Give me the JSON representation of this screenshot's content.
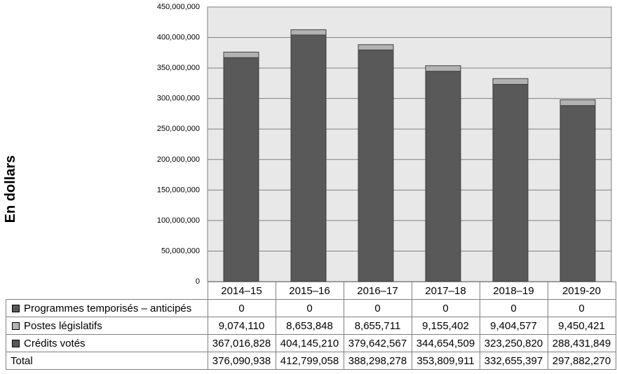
{
  "chart_data": {
    "type": "bar",
    "stacked": true,
    "ylabel": "En dollars",
    "ylim": [
      0,
      450000000
    ],
    "ytick_labels": [
      "0",
      "50,000,000",
      "100,000,000",
      "150,000,000",
      "200,000,000",
      "250,000,000",
      "300,000,000",
      "350,000,000",
      "400,000,000",
      "450,000,000"
    ],
    "ytick_values": [
      0,
      50000000,
      100000000,
      150000000,
      200000000,
      250000000,
      300000000,
      350000000,
      400000000,
      450000000
    ],
    "grid": true,
    "categories": [
      "2014–15",
      "2015–16",
      "2016–17",
      "2017–18",
      "2018–19",
      "2019-20"
    ],
    "series": [
      {
        "name": "Programmes temporisés – anticipés",
        "color": "#595959",
        "values": [
          0,
          0,
          0,
          0,
          0,
          0
        ],
        "labels": [
          "0",
          "0",
          "0",
          "0",
          "0",
          "0"
        ]
      },
      {
        "name": "Postes législatifs",
        "color": "#b2b2b2",
        "values": [
          9074110,
          8653848,
          8655711,
          9155402,
          9404577,
          9450421
        ],
        "labels": [
          "9,074,110",
          "8,653,848",
          "8,655,711",
          "9,155,402",
          "9,404,577",
          "9,450,421"
        ]
      },
      {
        "name": "Crédits votés",
        "color": "#595959",
        "values": [
          367016828,
          404145210,
          379642567,
          344654509,
          323250820,
          288431849
        ],
        "labels": [
          "367,016,828",
          "404,145,210",
          "379,642,567",
          "344,654,509",
          "323,250,820",
          "288,431,849"
        ]
      }
    ],
    "total": {
      "name": "Total",
      "values": [
        376090938,
        412799058,
        388298278,
        353809911,
        332655397,
        297882270
      ],
      "labels": [
        "376,090,938",
        "412,799,058",
        "388,298,278",
        "353,809,911",
        "332,655,397",
        "297,882,270"
      ]
    },
    "colors": {
      "plot_background": "#e8e8e8",
      "gridline": "#808080",
      "bar_edge": "#404040"
    }
  }
}
